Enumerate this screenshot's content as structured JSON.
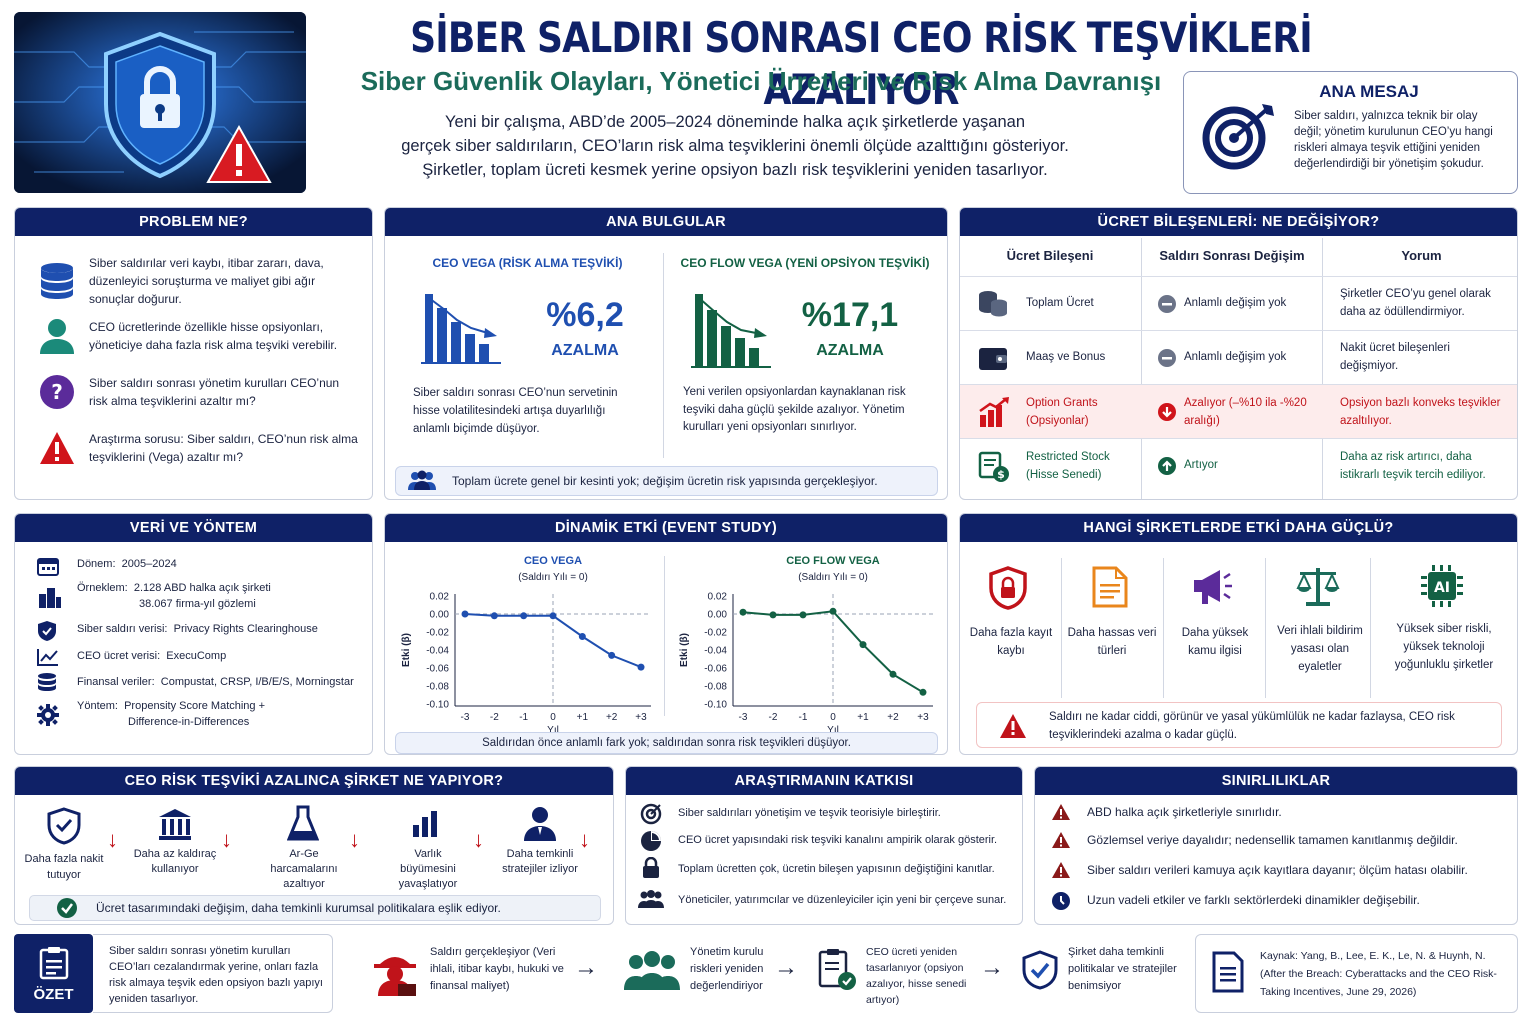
{
  "header": {
    "title": "SİBER SALDIRI SONRASI CEO RİSK TEŞVİKLERİ AZALIYOR",
    "subtitle": "Siber Güvenlik Olayları, Yönetici Ürretleri ve Risk Alma Davranışı",
    "intro_1": "Yeni bir çalışma, ABD’de 2005–2024 döneminde halka açık şirketlerde yaşanan",
    "intro_2": "gerçek siber saldırıların, CEO’ların risk alma teşviklerini önemli ölçüde azalttığını gösteriyor.",
    "intro_3": "Şirketler, toplam ücreti kesmek yerine opsiyon bazlı risk teşviklerini yeniden tasarlıyor."
  },
  "ana_mesaj": {
    "title": "ANA MESAJ",
    "text": "Siber saldırı, yalnızca teknik bir olay değil; yönetim kurulunun CEO’yu hangi riskleri almaya teşvik ettiğini yeniden değerlendirdiği bir yönetişim şokudur."
  },
  "problem": {
    "title": "PROBLEM NE?",
    "items": [
      "Siber saldırılar veri kaybı, itibar zararı, dava, düzenleyici soruşturma ve maliyet gibi ağır sonuçlar doğurur.",
      "CEO ücretlerinde özellikle hisse opsiyonları, yöneticiye daha fazla risk alma teşviki verebilir.",
      "Siber saldırı sonrası yönetim kurulları CEO’nun risk alma teşviklerini azaltır mı?",
      "Araştırma sorusu: Siber saldırı, CEO’nun risk alma teşviklerini (Vega) azaltır mı?"
    ]
  },
  "findings": {
    "title": "ANA BULGULAR",
    "left_title": "CEO VEGA (RİSK ALMA TEŞVİKİ)",
    "left_value": "%6,2",
    "left_label": "AZALMA",
    "left_text": "Siber saldırı sonrası CEO’nun servetinin hisse volatilitesindeki artışa duyarlılığı anlamlı biçimde düşüyor.",
    "right_title": "CEO FLOW VEGA (YENİ OPSİYON TEŞVİKİ)",
    "right_value": "%17,1",
    "right_label": "AZALMA",
    "right_text": "Yeni verilen opsiyonlardan kaynaklanan risk teşviki daha güçlü şekilde azalıyor. Yönetim kurulları yeni opsiyonları sınırlıyor.",
    "note": "Toplam ücrete genel bir kesinti yok; değişim ücretin risk yapısında gerçekleşiyor."
  },
  "ucret": {
    "title": "ÜCRET BİLEŞENLERİ: NE DEĞİŞİYOR?",
    "headers": [
      "Ücret Bileşeni",
      "Saldırı Sonrası Değişim",
      "Yorum"
    ],
    "rows": [
      {
        "comp": "Toplam Ücret",
        "change": "Anlamlı değişim yok",
        "comment": "Şirketler CEO’yu genel olarak daha az ödüllendirmiyor."
      },
      {
        "comp": "Maaş ve Bonus",
        "change": "Anlamlı değişim yok",
        "comment": "Nakit ücret bileşenleri değişmiyor."
      },
      {
        "comp": "Option Grants (Opsiyonlar)",
        "change": "Azalıyor (–%10 ila -%20 aralığı)",
        "comment": "Opsiyon bazlı konveks teşvikler azaltılıyor."
      },
      {
        "comp": "Restricted Stock (Hisse Senedi)",
        "change": "Artıyor",
        "comment": "Daha az risk artırıcı, daha istikrarlı teşvik tercih ediliyor."
      }
    ]
  },
  "veri": {
    "title": "VERİ VE YÖNTEM",
    "items": [
      {
        "label": "Dönem:",
        "value": "2005–2024"
      },
      {
        "label": "Örneklem:",
        "value": "2.128 ABD halka açık şirketi",
        "value2": "38.067 firma-yıl gözlemi"
      },
      {
        "label": "Siber saldırı verisi:",
        "value": "Privacy Rights Clearinghouse"
      },
      {
        "label": "CEO ücret verisi:",
        "value": "ExecuComp"
      },
      {
        "label": "Finansal veriler:",
        "value": "Compustat, CRSP, I/B/E/S, Morningstar"
      },
      {
        "label": "Yöntem:",
        "value": "Propensity Score Matching +",
        "value2": "Difference-in-Differences"
      }
    ]
  },
  "dinamik": {
    "title": "DİNAMİK ETKİ (EVENT STUDY)",
    "note": "Saldırıdan önce anlamlı fark yok; saldırıdan sonra risk teşvikleri düşüyor."
  },
  "chart_data": [
    {
      "type": "line",
      "title": "CEO VEGA",
      "subtitle": "(Saldırı Yılı = 0)",
      "xlabel": "Yıl",
      "ylabel": "Etki (β)",
      "x": [
        -3,
        -2,
        -1,
        0,
        1,
        2,
        3
      ],
      "values": [
        0.0,
        -0.002,
        -0.002,
        -0.002,
        -0.025,
        -0.046,
        -0.059
      ],
      "ylim": [
        -0.1,
        0.02
      ],
      "yticks": [
        "0.02",
        "0.00",
        "-0.02",
        "-0.04",
        "-0.06",
        "-0.08",
        "-0.10"
      ],
      "xticks": [
        "-3",
        "-2",
        "-1",
        "0",
        "+1",
        "+2",
        "+3"
      ],
      "color": "#1f4fb0"
    },
    {
      "type": "line",
      "title": "CEO FLOW VEGA",
      "subtitle": "(Saldırı Yılı = 0)",
      "xlabel": "Yıl",
      "ylabel": "Etki (β)",
      "x": [
        -3,
        -2,
        -1,
        0,
        1,
        2,
        3
      ],
      "values": [
        0.002,
        -0.001,
        -0.001,
        0.003,
        -0.034,
        -0.067,
        -0.087
      ],
      "ylim": [
        -0.1,
        0.02
      ],
      "yticks": [
        "0.02",
        "0.00",
        "-0.02",
        "-0.04",
        "-0.06",
        "-0.08",
        "-0.10"
      ],
      "xticks": [
        "-3",
        "-2",
        "-1",
        "0",
        "+1",
        "+2",
        "+3"
      ],
      "color": "#136144"
    }
  ],
  "hangi": {
    "title": "HANGİ ŞİRKETLERDE ETKİ DAHA GÜÇLÜ?",
    "items": [
      "Daha fazla kayıt kaybı",
      "Daha hassas veri türleri",
      "Daha yüksek kamu ilgisi",
      "Veri ihlali bildirim yasası olan eyaletler",
      "Yüksek siber riskli, yüksek teknoloji yoğunluklu şirketler"
    ],
    "note": "Saldırı ne kadar ciddi, görünür ve yasal yükümlülük ne kadar fazlaysa, CEO risk teşviklerindeki azalma o kadar güçlü."
  },
  "sirket": {
    "title": "CEO RİSK TEŞVİKİ AZALINCA ŞİRKET NE YAPIYOR?",
    "items": [
      "Daha fazla nakit tutuyor",
      "Daha az kaldıraç kullanıyor",
      "Ar-Ge harcamalarını azaltıyor",
      "Varlık büyümesini yavaşlatıyor",
      "Daha temkinli stratejiler izliyor"
    ],
    "note": "Ücret tasarımındaki değişim, daha temkinli kurumsal politikalara eşlik ediyor."
  },
  "katki": {
    "title": "ARAŞTIRMANIN KATKISI",
    "items": [
      "Siber saldırıları yönetişim ve teşvik teorisiyle birleştirir.",
      "CEO ücret yapısındaki risk teşviki kanalını ampirik olarak gösterir.",
      "Toplam ücretten çok, ücretin bileşen yapısının değiştiğini kanıtlar.",
      "Yöneticiler, yatırımcılar ve düzenleyiciler için yeni bir çerçeve sunar."
    ]
  },
  "sinir": {
    "title": "SINIRLILIKLAR",
    "items": [
      "ABD halka açık şirketleriyle sınırlıdır.",
      "Gözlemsel veriye dayalıdır; nedensellik tamamen kanıtlanmış değildir.",
      "Siber saldırı verileri kamuya açık kayıtlara dayanır; ölçüm hatası olabilir.",
      "Uzun vadeli etkiler ve farklı sektörlerdeki dinamikler değişebilir."
    ]
  },
  "ozet": {
    "label": "ÖZET",
    "text": "Siber saldırı sonrası yönetim kurulları CEO’ları cezalandırmak yerine, onları fazla risk almaya teşvik eden opsiyon bazlı yapıyı yeniden tasarlıyor.",
    "flow": [
      "Saldırı gerçekleşiyor (Veri ihlali, itibar kaybı, hukuki ve finansal maliyet)",
      "Yönetim kurulu riskleri yeniden değerlendiriyor",
      "CEO ücreti yeniden tasarlanıyor (opsiyon azalıyor, hisse senedi artıyor)",
      "Şirket daha temkinli politikalar ve stratejiler benimsiyor"
    ],
    "source": "Kaynak: Yang, B., Lee, E. K., Le, N. & Huynh, N. (After the Breach: Cyberattacks and the CEO Risk-Taking Incentives, June 29, 2026)"
  },
  "colors": {
    "navy": "#0f2167",
    "teal": "#1b6b5a",
    "red": "#c0131a",
    "blue": "#1f4fb0",
    "green": "#136144"
  }
}
